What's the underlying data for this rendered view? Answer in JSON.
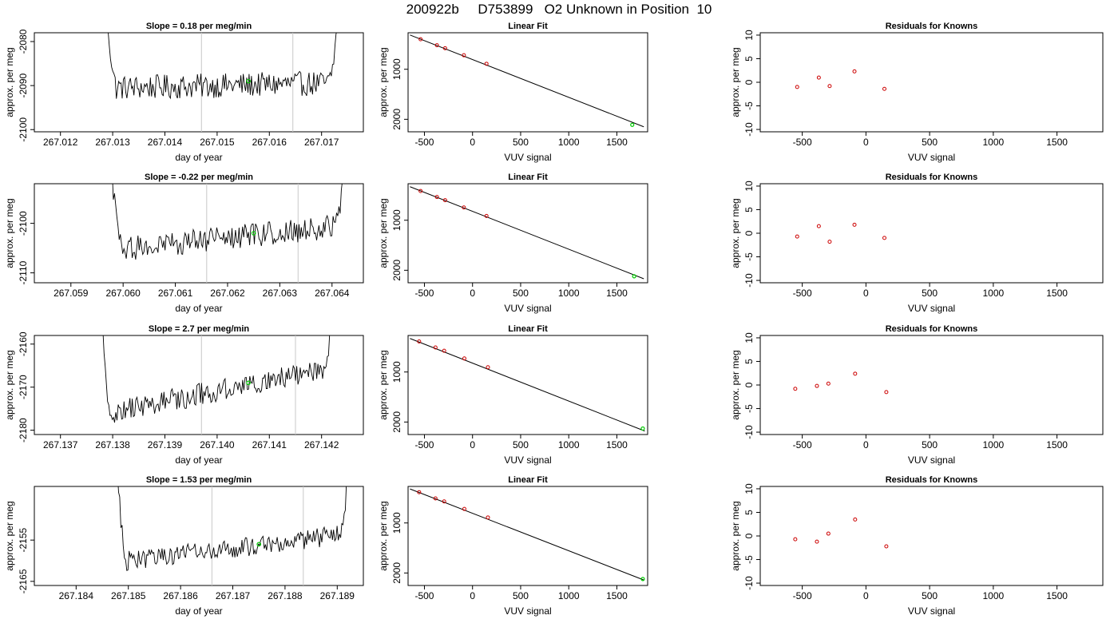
{
  "title": "200922b     D753899   O2 Unknown in Position  10",
  "colors": {
    "trace": "#000000",
    "known_point": "#cc0000",
    "unknown_point": "#00cc00",
    "marker_line": "#c8c8c8"
  },
  "chart_data": [
    {
      "type": "line",
      "row": 0,
      "panel": "time",
      "title": "Slope =  0.18  per meg/min",
      "xlabel": "day of year",
      "ylabel": "approx. per meg",
      "xlim": [
        267.0115,
        267.0178
      ],
      "ylim": [
        -2100.5,
        -2078
      ],
      "xticks": [
        267.012,
        267.013,
        267.014,
        267.015,
        267.016,
        267.017
      ],
      "xtick_labels": [
        "267.012",
        "267.013",
        "267.014",
        "267.015",
        "267.016",
        "267.017"
      ],
      "yticks": [
        -2100,
        -2090,
        -2080
      ],
      "ytick_labels": [
        "-2100",
        "-2090",
        "-2080"
      ],
      "x_start": 267.0128,
      "x_end": 267.0173,
      "trace_base": -2090,
      "trace_slope": 1.2,
      "noise_amp": 2.8,
      "edge_up": 14,
      "edge_down": 6,
      "vlines": [
        267.0147,
        267.01645
      ],
      "unknown_point": {
        "x": 267.0156,
        "y": -2089
      }
    },
    {
      "type": "scatter",
      "row": 0,
      "panel": "fit",
      "title": "Linear Fit",
      "xlabel": "VUV signal",
      "ylabel": "approx. per meg",
      "xlim": [
        -670,
        1820
      ],
      "ylim": [
        -2250,
        -270
      ],
      "xticks": [
        -500,
        0,
        500,
        1000,
        1500
      ],
      "xtick_labels": [
        "-500",
        "0",
        "500",
        "1000",
        "1500"
      ],
      "yticks": [
        -2000,
        -1000
      ],
      "ytick_labels": [
        "2000",
        "1000"
      ],
      "known_x": [
        -540,
        -370,
        -285,
        -90,
        145
      ],
      "known_y": [
        -400,
        -520,
        -580,
        -720,
        -890
      ],
      "unknown": {
        "x": 1660,
        "y": -2110
      },
      "fit_line": {
        "x": [
          -650,
          1780
        ],
        "y": [
          -315,
          -2150
        ]
      }
    },
    {
      "type": "scatter",
      "row": 0,
      "panel": "resid",
      "title": "Residuals for Knowns",
      "xlabel": "VUV signal",
      "ylabel": "approx. per meg",
      "xlim": [
        -830,
        1860
      ],
      "ylim": [
        -10.5,
        10.5
      ],
      "xticks": [
        -500,
        0,
        500,
        1000,
        1500
      ],
      "xtick_labels": [
        "-500",
        "0",
        "500",
        "1000",
        "1500"
      ],
      "yticks": [
        -10,
        -5,
        0,
        5,
        10
      ],
      "ytick_labels": [
        "-10",
        "-5",
        "0",
        "5",
        "10"
      ],
      "x": [
        -540,
        -370,
        -285,
        -90,
        145
      ],
      "y": [
        -1,
        1,
        -0.8,
        2.3,
        -1.4
      ]
    },
    {
      "type": "line",
      "row": 1,
      "panel": "time",
      "title": "Slope =  -0.22  per meg/min",
      "xlabel": "day of year",
      "ylabel": "approx. per meg",
      "xlim": [
        267.0583,
        267.0646
      ],
      "ylim": [
        -2112,
        -2092
      ],
      "xticks": [
        267.059,
        267.06,
        267.061,
        267.062,
        267.063,
        267.064
      ],
      "xtick_labels": [
        "267.059",
        "267.060",
        "267.061",
        "267.062",
        "267.063",
        "267.064"
      ],
      "yticks": [
        -2110,
        -2100
      ],
      "ytick_labels": [
        "-2110",
        "-2100"
      ],
      "x_start": 267.0597,
      "x_end": 267.0642,
      "trace_base": -2103,
      "trace_slope": 5,
      "noise_amp": 2.4,
      "edge_up": 14,
      "edge_down": 4,
      "vlines": [
        267.0616,
        267.06335
      ],
      "unknown_point": {
        "x": 267.0625,
        "y": -2102
      }
    },
    {
      "type": "scatter",
      "row": 1,
      "panel": "fit",
      "title": "Linear Fit",
      "xlabel": "VUV signal",
      "ylabel": "approx. per meg",
      "xlim": [
        -670,
        1820
      ],
      "ylim": [
        -2250,
        -270
      ],
      "xticks": [
        -500,
        0,
        500,
        1000,
        1500
      ],
      "xtick_labels": [
        "-500",
        "0",
        "500",
        "1000",
        "1500"
      ],
      "yticks": [
        -2000,
        -1000
      ],
      "ytick_labels": [
        "2000",
        "1000"
      ],
      "known_x": [
        -540,
        -370,
        -285,
        -90,
        145
      ],
      "known_y": [
        -415,
        -535,
        -600,
        -745,
        -915
      ],
      "unknown": {
        "x": 1680,
        "y": -2120
      },
      "fit_line": {
        "x": [
          -650,
          1780
        ],
        "y": [
          -330,
          -2170
        ]
      }
    },
    {
      "type": "scatter",
      "row": 1,
      "panel": "resid",
      "title": "Residuals for Knowns",
      "xlabel": "VUV signal",
      "ylabel": "approx. per meg",
      "xlim": [
        -830,
        1860
      ],
      "ylim": [
        -10.5,
        10.5
      ],
      "xticks": [
        -500,
        0,
        500,
        1000,
        1500
      ],
      "xtick_labels": [
        "-500",
        "0",
        "500",
        "1000",
        "1500"
      ],
      "yticks": [
        -10,
        -5,
        0,
        5,
        10
      ],
      "ytick_labels": [
        "-10",
        "-5",
        "0",
        "5",
        "10"
      ],
      "x": [
        -540,
        -370,
        -285,
        -90,
        145
      ],
      "y": [
        -0.7,
        1.5,
        -1.8,
        1.8,
        -1
      ]
    },
    {
      "type": "line",
      "row": 2,
      "panel": "time",
      "title": "Slope =  2.7  per meg/min",
      "xlabel": "day of year",
      "ylabel": "approx. per meg",
      "xlim": [
        267.1365,
        267.1428
      ],
      "ylim": [
        -2181,
        -2158
      ],
      "xticks": [
        267.137,
        267.138,
        267.139,
        267.14,
        267.141,
        267.142
      ],
      "xtick_labels": [
        "267.137",
        "267.138",
        "267.139",
        "267.140",
        "267.141",
        "267.142"
      ],
      "yticks": [
        -2180,
        -2170,
        -2160
      ],
      "ytick_labels": [
        "-2180",
        "-2170",
        "-2160"
      ],
      "x_start": 267.1377,
      "x_end": 267.1422,
      "trace_base": -2171,
      "trace_slope": 11,
      "noise_amp": 2.6,
      "edge_up": 18,
      "edge_down": 6,
      "vlines": [
        267.1397,
        267.1415
      ],
      "unknown_point": {
        "x": 267.1406,
        "y": -2169
      }
    },
    {
      "type": "scatter",
      "row": 2,
      "panel": "fit",
      "title": "Linear Fit",
      "xlabel": "VUV signal",
      "ylabel": "approx. per meg",
      "xlim": [
        -670,
        1820
      ],
      "ylim": [
        -2250,
        -270
      ],
      "xticks": [
        -500,
        0,
        500,
        1000,
        1500
      ],
      "xtick_labels": [
        "-500",
        "0",
        "500",
        "1000",
        "1500"
      ],
      "yticks": [
        -2000,
        -1000
      ],
      "ytick_labels": [
        "2000",
        "1000"
      ],
      "known_x": [
        -555,
        -385,
        -295,
        -85,
        160
      ],
      "known_y": [
        -390,
        -510,
        -575,
        -730,
        -905
      ],
      "unknown": {
        "x": 1770,
        "y": -2130
      },
      "fit_line": {
        "x": [
          -650,
          1790
        ],
        "y": [
          -330,
          -2180
        ]
      }
    },
    {
      "type": "scatter",
      "row": 2,
      "panel": "resid",
      "title": "Residuals for Knowns",
      "xlabel": "VUV signal",
      "ylabel": "approx. per meg",
      "xlim": [
        -830,
        1860
      ],
      "ylim": [
        -10.5,
        10.5
      ],
      "xticks": [
        -500,
        0,
        500,
        1000,
        1500
      ],
      "xtick_labels": [
        "-500",
        "0",
        "500",
        "1000",
        "1500"
      ],
      "yticks": [
        -10,
        -5,
        0,
        5,
        10
      ],
      "ytick_labels": [
        "-10",
        "-5",
        "0",
        "5",
        "10"
      ],
      "x": [
        -555,
        -385,
        -295,
        -85,
        160
      ],
      "y": [
        -0.8,
        -0.2,
        0.3,
        2.4,
        -1.5
      ]
    },
    {
      "type": "line",
      "row": 3,
      "panel": "time",
      "title": "Slope =  1.53  per meg/min",
      "xlabel": "day of year",
      "ylabel": "approx. per meg",
      "xlim": [
        267.1832,
        267.1895
      ],
      "ylim": [
        -2166,
        -2142
      ],
      "xticks": [
        267.184,
        267.185,
        267.186,
        267.187,
        267.188,
        267.189
      ],
      "xtick_labels": [
        "267.184",
        "267.185",
        "267.186",
        "267.187",
        "267.188",
        "267.189"
      ],
      "yticks": [
        -2165,
        -2155
      ],
      "ytick_labels": [
        "-2165",
        "-2155"
      ],
      "x_start": 267.1847,
      "x_end": 267.1892,
      "trace_base": -2157,
      "trace_slope": 7,
      "noise_amp": 2.4,
      "edge_up": 16,
      "edge_down": 6,
      "vlines": [
        267.1866,
        267.18835
      ],
      "unknown_point": {
        "x": 267.1875,
        "y": -2156
      }
    },
    {
      "type": "scatter",
      "row": 3,
      "panel": "fit",
      "title": "Linear Fit",
      "xlabel": "VUV signal",
      "ylabel": "approx. per meg",
      "xlim": [
        -670,
        1820
      ],
      "ylim": [
        -2250,
        -270
      ],
      "xticks": [
        -500,
        0,
        500,
        1000,
        1500
      ],
      "xtick_labels": [
        "-500",
        "0",
        "500",
        "1000",
        "1500"
      ],
      "yticks": [
        -2000,
        -1000
      ],
      "ytick_labels": [
        "2000",
        "1000"
      ],
      "known_x": [
        -555,
        -385,
        -295,
        -85,
        160
      ],
      "known_y": [
        -385,
        -510,
        -570,
        -720,
        -890
      ],
      "unknown": {
        "x": 1770,
        "y": -2120
      },
      "fit_line": {
        "x": [
          -650,
          1780
        ],
        "y": [
          -320,
          -2140
        ]
      }
    },
    {
      "type": "scatter",
      "row": 3,
      "panel": "resid",
      "title": "Residuals for Knowns",
      "xlabel": "VUV signal",
      "ylabel": "approx. per meg",
      "xlim": [
        -830,
        1860
      ],
      "ylim": [
        -10.5,
        10.5
      ],
      "xticks": [
        -500,
        0,
        500,
        1000,
        1500
      ],
      "xtick_labels": [
        "-500",
        "0",
        "500",
        "1000",
        "1500"
      ],
      "yticks": [
        -10,
        -5,
        0,
        5,
        10
      ],
      "ytick_labels": [
        "-10",
        "-5",
        "0",
        "5",
        "10"
      ],
      "x": [
        -555,
        -385,
        -295,
        -85,
        160
      ],
      "y": [
        -0.7,
        -1.2,
        0.5,
        3.5,
        -2.2
      ]
    }
  ]
}
